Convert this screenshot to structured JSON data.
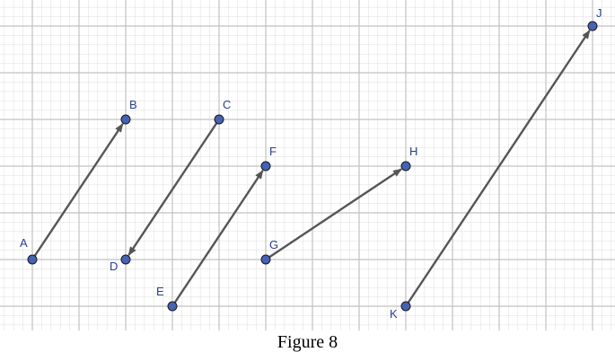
{
  "caption": "Figure 8",
  "colors": {
    "minor_grid": "#e3e3e3",
    "major_grid": "#c2c2c2",
    "vector": "#555555",
    "point_fill": "#4662b4",
    "point_stroke": "#1a1a1a",
    "label": "#2a3f8f"
  },
  "grid": {
    "x_range": [
      -0.7,
      12.5
    ],
    "y_range": [
      -0.5,
      6.6
    ],
    "minor_per_unit": 5
  },
  "points": [
    {
      "id": "A",
      "label": "A",
      "x": 0,
      "y": 1
    },
    {
      "id": "B",
      "label": "B",
      "x": 2,
      "y": 4
    },
    {
      "id": "C",
      "label": "C",
      "x": 4,
      "y": 4
    },
    {
      "id": "D",
      "label": "D",
      "x": 2,
      "y": 1
    },
    {
      "id": "E",
      "label": "E",
      "x": 3,
      "y": 0
    },
    {
      "id": "F",
      "label": "F",
      "x": 5,
      "y": 3
    },
    {
      "id": "G",
      "label": "G",
      "x": 5,
      "y": 1
    },
    {
      "id": "H",
      "label": "H",
      "x": 8,
      "y": 3
    },
    {
      "id": "K",
      "label": "K",
      "x": 8,
      "y": 0
    },
    {
      "id": "J",
      "label": "J",
      "x": 12,
      "y": 6
    }
  ],
  "vectors": [
    {
      "from": "A",
      "to": "B"
    },
    {
      "from": "C",
      "to": "D"
    },
    {
      "from": "E",
      "to": "F"
    },
    {
      "from": "G",
      "to": "H"
    },
    {
      "from": "K",
      "to": "J"
    }
  ]
}
